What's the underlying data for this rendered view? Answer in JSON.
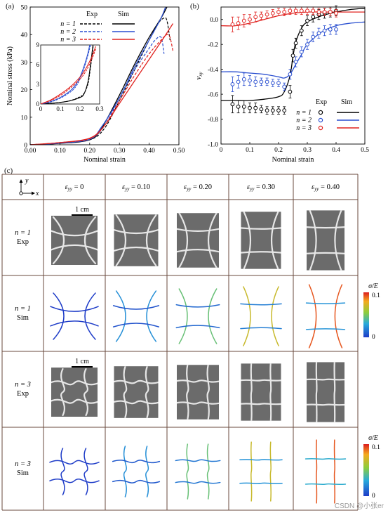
{
  "panel_a": {
    "label": "(a)",
    "ylabel": "Nominal stress (kPa)",
    "xlabel": "Nominal strain",
    "legend_header_exp": "Exp",
    "legend_header_sim": "Sim",
    "legend_rows": [
      "n = 1",
      "n = 2",
      "n = 3"
    ],
    "colors": {
      "n1": "#000000",
      "n2": "#2a4fd0",
      "n3": "#e0221f"
    },
    "inset_xticks": [
      "0",
      "0.1",
      "0.2",
      "0.3"
    ],
    "inset_yticks": [
      "0",
      "3",
      "6",
      "9"
    ]
  },
  "panel_b": {
    "label": "(b)",
    "ylabel": "ν",
    "ylabel_sub": "xy",
    "xlabel": "Nominal strain",
    "legend_header_exp": "Exp",
    "legend_header_sim": "Sim",
    "legend_rows": [
      "n = 1",
      "n = 2",
      "n = 3"
    ]
  },
  "chart_data": [
    {
      "type": "line",
      "panel": "(a)",
      "xlabel": "Nominal strain",
      "ylabel": "Nominal stress (kPa)",
      "xlim": [
        0,
        0.5
      ],
      "ylim": [
        0,
        50
      ],
      "xticks": [
        "0.00",
        "0.10",
        "0.20",
        "0.30",
        "0.40",
        "0.50"
      ],
      "yticks": [
        "0",
        "10",
        "20",
        "30",
        "40",
        "50"
      ],
      "series": [
        {
          "name": "n = 1 Exp",
          "style": "dashed",
          "color": "#000000",
          "x": [
            0,
            0.1,
            0.2,
            0.25,
            0.3,
            0.35,
            0.4,
            0.43,
            0.45,
            0.46,
            0.47
          ],
          "y": [
            0,
            0.6,
            1.8,
            6,
            16,
            27,
            38,
            44,
            46,
            45,
            38
          ]
        },
        {
          "name": "n = 1 Sim",
          "style": "solid",
          "color": "#000000",
          "x": [
            0,
            0.1,
            0.2,
            0.24,
            0.3,
            0.35,
            0.4,
            0.44,
            0.46
          ],
          "y": [
            0,
            0.5,
            1.8,
            6,
            18,
            29,
            39,
            46,
            50
          ]
        },
        {
          "name": "n = 2 Exp",
          "style": "dashed",
          "color": "#2a4fd0",
          "x": [
            0,
            0.1,
            0.2,
            0.25,
            0.3,
            0.35,
            0.4,
            0.42,
            0.44,
            0.45
          ],
          "y": [
            0,
            0.6,
            2.0,
            7,
            17,
            27,
            35,
            38,
            39,
            33
          ]
        },
        {
          "name": "n = 2 Sim",
          "style": "solid",
          "color": "#2a4fd0",
          "x": [
            0,
            0.1,
            0.2,
            0.24,
            0.3,
            0.35,
            0.4,
            0.44,
            0.455
          ],
          "y": [
            0,
            0.6,
            2.0,
            6.5,
            17,
            28,
            38,
            46,
            50
          ]
        },
        {
          "name": "n = 3 Exp",
          "style": "dashed",
          "color": "#e0221f",
          "x": [
            0,
            0.1,
            0.2,
            0.25,
            0.3,
            0.35,
            0.4,
            0.44,
            0.46,
            0.47,
            0.48
          ],
          "y": [
            0,
            0.8,
            2.2,
            7,
            16,
            25,
            33,
            38,
            40,
            39,
            34
          ]
        },
        {
          "name": "n = 3 Sim",
          "style": "solid",
          "color": "#e0221f",
          "x": [
            0,
            0.1,
            0.2,
            0.25,
            0.3,
            0.35,
            0.4,
            0.45,
            0.48
          ],
          "y": [
            0,
            0.8,
            2.4,
            7,
            15,
            23,
            31,
            39,
            44
          ]
        }
      ]
    },
    {
      "type": "scatter",
      "panel": "(b)",
      "xlabel": "Nominal strain",
      "ylabel": "ν_xy",
      "xlim": [
        0,
        0.5
      ],
      "ylim": [
        -1.0,
        0.1
      ],
      "xticks": [
        "0",
        "0.1",
        "0.2",
        "0.3",
        "0.4",
        "0.5"
      ],
      "yticks": [
        "0.0",
        "-0.2",
        "-0.4",
        "-0.6",
        "-0.8",
        "-1.0"
      ],
      "series": [
        {
          "name": "n = 1 Exp",
          "marker": "circle",
          "color": "#000000",
          "x": [
            0.04,
            0.06,
            0.08,
            0.1,
            0.12,
            0.14,
            0.16,
            0.18,
            0.2,
            0.22,
            0.24,
            0.25,
            0.26,
            0.28,
            0.3,
            0.32,
            0.34,
            0.36,
            0.38,
            0.4
          ],
          "y": [
            -0.68,
            -0.7,
            -0.7,
            -0.71,
            -0.71,
            -0.72,
            -0.73,
            -0.73,
            -0.73,
            -0.73,
            -0.58,
            -0.29,
            -0.19,
            -0.09,
            -0.01,
            0.02,
            0.04,
            0.05,
            0.06,
            0.07
          ],
          "err": [
            0.07,
            0.05,
            0.05,
            0.04,
            0.04,
            0.03,
            0.03,
            0.03,
            0.03,
            0.03,
            0.05,
            0.05,
            0.04,
            0.04,
            0.04,
            0.04,
            0.04,
            0.04,
            0.04,
            0.04
          ]
        },
        {
          "name": "n = 2 Exp",
          "marker": "circle",
          "color": "#2a4fd0",
          "x": [
            0.04,
            0.06,
            0.08,
            0.1,
            0.12,
            0.14,
            0.16,
            0.18,
            0.2,
            0.22,
            0.24,
            0.26,
            0.28,
            0.3,
            0.32,
            0.34,
            0.36,
            0.38,
            0.4
          ],
          "y": [
            -0.52,
            -0.5,
            -0.48,
            -0.49,
            -0.5,
            -0.5,
            -0.5,
            -0.51,
            -0.51,
            -0.54,
            -0.44,
            -0.34,
            -0.26,
            -0.2,
            -0.14,
            -0.11,
            -0.09,
            -0.08,
            -0.08
          ],
          "err": [
            0.06,
            0.05,
            0.05,
            0.04,
            0.04,
            0.03,
            0.03,
            0.03,
            0.03,
            0.03,
            0.04,
            0.04,
            0.04,
            0.04,
            0.04,
            0.04,
            0.04,
            0.04,
            0.04
          ]
        },
        {
          "name": "n = 3 Exp",
          "marker": "circle",
          "color": "#e0221f",
          "x": [
            0.04,
            0.06,
            0.08,
            0.1,
            0.12,
            0.14,
            0.16,
            0.18,
            0.2,
            0.22,
            0.24,
            0.26,
            0.28,
            0.3,
            0.32,
            0.34,
            0.36,
            0.38,
            0.4
          ],
          "y": [
            -0.04,
            -0.03,
            -0.01,
            0.0,
            0.02,
            0.03,
            0.04,
            0.05,
            0.06,
            0.06,
            0.07,
            0.07,
            0.07,
            0.07,
            0.07,
            0.06,
            0.06,
            0.06,
            0.05
          ],
          "err": [
            0.06,
            0.05,
            0.05,
            0.04,
            0.04,
            0.03,
            0.03,
            0.03,
            0.03,
            0.03,
            0.03,
            0.03,
            0.03,
            0.03,
            0.03,
            0.03,
            0.03,
            0.03,
            0.03
          ]
        },
        {
          "name": "n = 1 Sim",
          "line": "solid",
          "color": "#000000",
          "x": [
            0,
            0.05,
            0.1,
            0.15,
            0.2,
            0.22,
            0.24,
            0.25,
            0.26,
            0.28,
            0.3,
            0.35,
            0.4,
            0.45,
            0.5
          ],
          "y": [
            -0.65,
            -0.65,
            -0.65,
            -0.64,
            -0.62,
            -0.58,
            -0.45,
            -0.3,
            -0.18,
            -0.07,
            -0.02,
            0.03,
            0.06,
            0.08,
            0.09
          ]
        },
        {
          "name": "n = 2 Sim",
          "line": "solid",
          "color": "#2a4fd0",
          "x": [
            0,
            0.05,
            0.1,
            0.15,
            0.2,
            0.22,
            0.24,
            0.26,
            0.28,
            0.3,
            0.35,
            0.4,
            0.45,
            0.5
          ],
          "y": [
            -0.42,
            -0.42,
            -0.43,
            -0.44,
            -0.46,
            -0.47,
            -0.44,
            -0.36,
            -0.28,
            -0.2,
            -0.1,
            -0.05,
            -0.03,
            -0.02
          ]
        },
        {
          "name": "n = 3 Sim",
          "line": "solid",
          "color": "#e0221f",
          "x": [
            0,
            0.05,
            0.1,
            0.15,
            0.2,
            0.25,
            0.3,
            0.35,
            0.4,
            0.45,
            0.5
          ],
          "y": [
            -0.05,
            -0.05,
            -0.03,
            0.0,
            0.03,
            0.05,
            0.06,
            0.06,
            0.06,
            0.06,
            0.06
          ]
        }
      ]
    }
  ],
  "panel_c": {
    "label": "(c)",
    "axis_y": "y",
    "axis_x": "x",
    "columns": [
      {
        "eps": "ε",
        "sub": "yy",
        "value": "= 0",
        "strain": 0
      },
      {
        "eps": "ε",
        "sub": "yy",
        "value": "= 0.10",
        "strain": 0.1
      },
      {
        "eps": "ε",
        "sub": "yy",
        "value": "= 0.20",
        "strain": 0.2
      },
      {
        "eps": "ε",
        "sub": "yy",
        "value": "= 0.30",
        "strain": 0.3
      },
      {
        "eps": "ε",
        "sub": "yy",
        "value": "= 0.40",
        "strain": 0.4
      }
    ],
    "rows": [
      {
        "line1": "n = 1",
        "line2": "Exp",
        "kind": "exp",
        "pattern": 1,
        "scalebar": "1 cm"
      },
      {
        "line1": "n = 1",
        "line2": "Sim",
        "kind": "sim",
        "pattern": 1,
        "colorbar": true
      },
      {
        "line1": "n = 3",
        "line2": "Exp",
        "kind": "exp",
        "pattern": 3,
        "scalebar": "1 cm"
      },
      {
        "line1": "n = 3",
        "line2": "Sim",
        "kind": "sim",
        "pattern": 3,
        "colorbar": true
      }
    ],
    "colorbar": {
      "title": "σ/E",
      "max": "0.1",
      "min": "0"
    }
  },
  "watermark": "CSDN @小张er"
}
